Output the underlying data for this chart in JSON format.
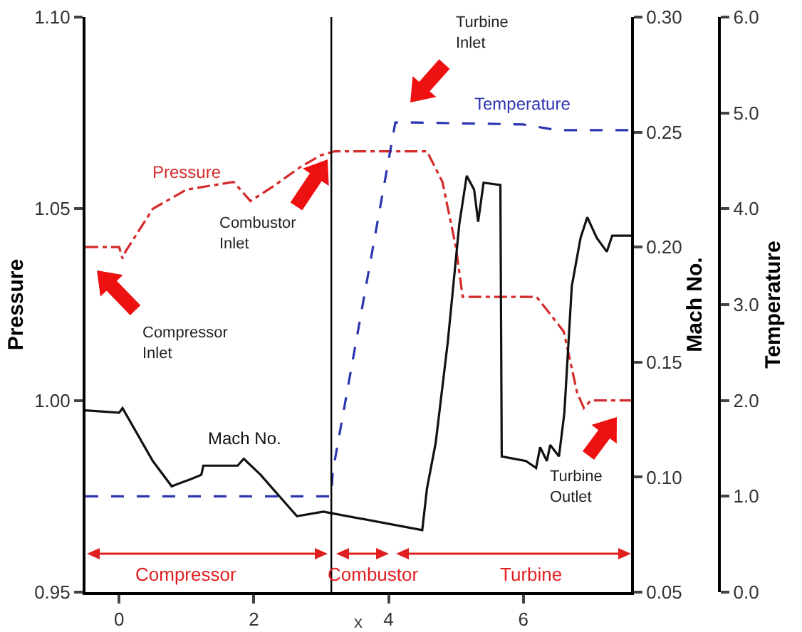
{
  "chart_data": {
    "type": "line",
    "xlabel": "x",
    "ylabel": "Pressure",
    "y2label": "Mach No.",
    "y3label": "Temperature",
    "xlim": [
      -0.5,
      7.6
    ],
    "xticks": [
      0,
      2,
      4,
      6
    ],
    "ylim": [
      0.95,
      1.1
    ],
    "yticks": [
      {
        "value": 0.95,
        "label": "0.95"
      },
      {
        "value": 1,
        "label": "1.00"
      },
      {
        "value": 1.05,
        "label": "1.05"
      },
      {
        "value": 1.1,
        "label": "1.10"
      }
    ],
    "y2lim": [
      0.05,
      0.3
    ],
    "y2ticks": [
      {
        "value": 0.05,
        "label": "0.05"
      },
      {
        "value": 0.1,
        "label": "0.10"
      },
      {
        "value": 0.15,
        "label": "0.15"
      },
      {
        "value": 0.2,
        "label": "0.20"
      },
      {
        "value": 0.25,
        "label": "0.25"
      },
      {
        "value": 0.3,
        "label": "0.30"
      }
    ],
    "y3lim": [
      0,
      6
    ],
    "y3ticks": [
      {
        "value": 0,
        "label": "0.0"
      },
      {
        "value": 1,
        "label": "1.0"
      },
      {
        "value": 2,
        "label": "2.0"
      },
      {
        "value": 3,
        "label": "3.0"
      },
      {
        "value": 4,
        "label": "4.0"
      },
      {
        "value": 5,
        "label": "5.0"
      },
      {
        "value": 6,
        "label": "6.0"
      }
    ],
    "series": [
      {
        "name": "Pressure",
        "color": "#d42a2a",
        "line_style": "dashdot",
        "x": [
          -0.5,
          0,
          0.05,
          0.1,
          0.5,
          1.0,
          1.7,
          1.95,
          2.3,
          2.7,
          3.0,
          3.2,
          4.57,
          4.8,
          5.0,
          5.1,
          6.2,
          6.6,
          6.8,
          6.9,
          7.0,
          7.6
        ],
        "values": [
          1.04,
          1.04,
          1.037,
          1.039,
          1.05,
          1.055,
          1.057,
          1.052,
          1.056,
          1.061,
          1.064,
          1.065,
          1.065,
          1.057,
          1.04,
          1.027,
          1.027,
          1.018,
          1.002,
          0.998,
          1.0,
          1.0
        ]
      },
      {
        "name": "Mach No.",
        "color": "#111111",
        "line_style": "solid",
        "axis": "y2",
        "x": [
          -0.5,
          0,
          0.05,
          0.5,
          0.78,
          1.05,
          1.22,
          1.25,
          1.76,
          1.85,
          2.1,
          2.46,
          2.64,
          3.03,
          4.5,
          4.57,
          4.7,
          4.88,
          5.05,
          5.16,
          5.27,
          5.33,
          5.41,
          5.66,
          5.68,
          6.04,
          6.19,
          6.25,
          6.35,
          6.4,
          6.53,
          6.61,
          6.72,
          6.85,
          6.95,
          7.09,
          7.24,
          7.32,
          7.6
        ],
        "values": [
          0.129,
          0.128,
          0.13,
          0.107,
          0.096,
          0.099,
          0.101,
          0.105,
          0.105,
          0.108,
          0.101,
          0.089,
          0.083,
          0.085,
          0.077,
          0.095,
          0.115,
          0.159,
          0.21,
          0.231,
          0.225,
          0.211,
          0.228,
          0.227,
          0.109,
          0.107,
          0.104,
          0.113,
          0.107,
          0.114,
          0.109,
          0.128,
          0.183,
          0.204,
          0.213,
          0.204,
          0.198,
          0.205,
          0.205
        ]
      },
      {
        "name": "Temperature",
        "color": "#2b35b0",
        "line_style": "dashed",
        "axis": "y3",
        "x": [
          -0.5,
          3.15,
          3.17,
          4.1,
          4.4,
          6.0,
          6.5,
          7.6
        ],
        "values": [
          1.0,
          1.0,
          1.25,
          4.9,
          4.9,
          4.88,
          4.82,
          4.82
        ]
      }
    ],
    "ref_lines": [
      {
        "axis": "x",
        "value": 3.15,
        "color": "#000000"
      }
    ],
    "annotations": [
      "Compressor\nInlet",
      "Combustor\nInlet",
      "Turbine\nInlet",
      "Turbine\nOutlet",
      "Compressor",
      "Combustor",
      "Turbine"
    ],
    "legend": false,
    "grid": false
  }
}
